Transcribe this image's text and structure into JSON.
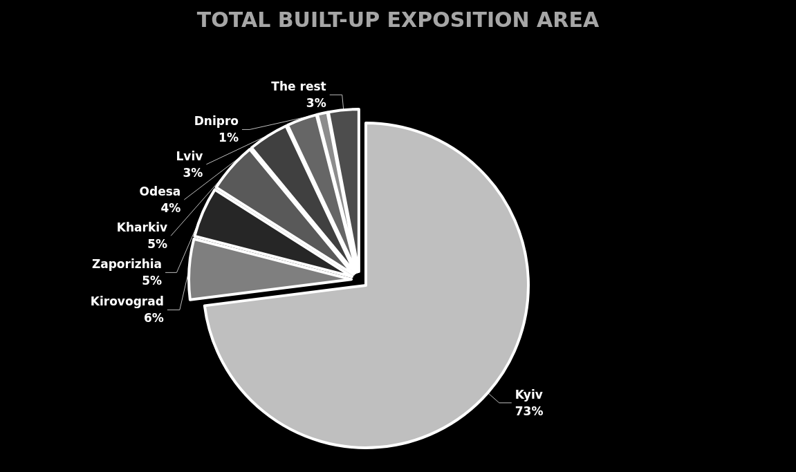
{
  "chart_data": {
    "type": "pie",
    "title": "TOTAL BUILT-UP EXPOSITION AREA",
    "categories": [
      "Kyiv",
      "Kirovograd",
      "Zaporizhia",
      "Kharkiv",
      "Odesa",
      "Lviv",
      "Dnipro",
      "The rest"
    ],
    "values": [
      73,
      6,
      5,
      5,
      4,
      3,
      1,
      3
    ],
    "value_labels": [
      "73%",
      "6%",
      "5%",
      "5%",
      "4%",
      "3%",
      "1%",
      "3%"
    ],
    "colors": [
      "#bfbfbf",
      "#7f7f7f",
      "#262626",
      "#595959",
      "#404040",
      "#666666",
      "#8c8c8c",
      "#4d4d4d"
    ],
    "legend": false
  }
}
